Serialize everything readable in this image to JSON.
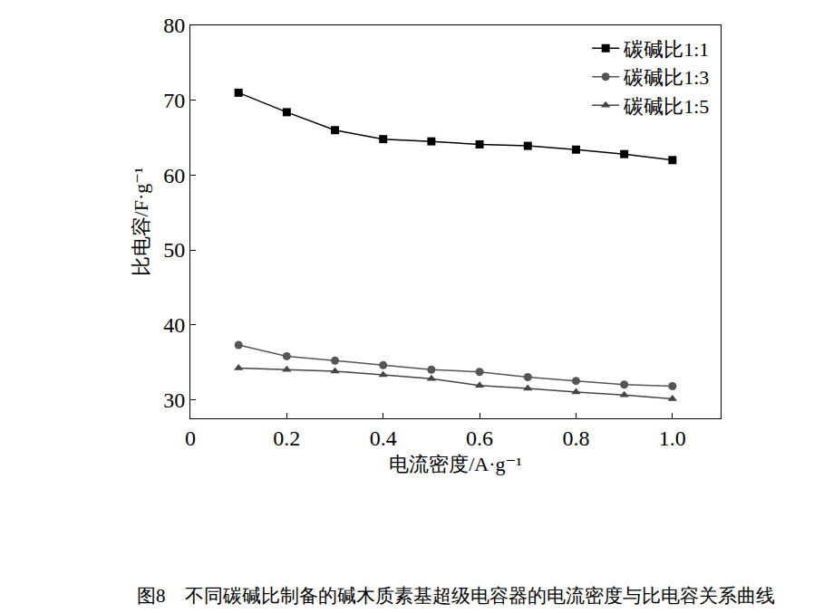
{
  "chart_data": {
    "type": "line",
    "title": "图8　不同碳碱比制备的碱木质素基超级电容器的电流密度与比电容关系曲线",
    "x_label": "电流密度/A·g⁻¹",
    "y_label": "比电容/F·g⁻¹",
    "x": [
      0.1,
      0.2,
      0.3,
      0.4,
      0.5,
      0.6,
      0.7,
      0.8,
      0.9,
      1.0
    ],
    "series": [
      {
        "name": "碳碱比1:1",
        "color": "#000000",
        "marker": "square",
        "values": [
          71.0,
          68.4,
          66.0,
          64.8,
          64.5,
          64.1,
          63.9,
          63.4,
          62.8,
          62.0
        ]
      },
      {
        "name": "碳碱比1:3",
        "color": "#555555",
        "marker": "circle",
        "values": [
          37.3,
          35.8,
          35.2,
          34.6,
          34.0,
          33.7,
          33.0,
          32.5,
          32.0,
          31.8
        ]
      },
      {
        "name": "碳碱比1:5",
        "color": "#444444",
        "marker": "triangle-up",
        "values": [
          34.2,
          34.0,
          33.8,
          33.3,
          32.8,
          31.9,
          31.5,
          31.0,
          30.6,
          30.1
        ]
      }
    ],
    "xlim": [
      0,
      1.1
    ],
    "xticks": [
      0,
      0.2,
      0.4,
      0.6,
      0.8,
      {
        "value": 1,
        "label": "1.0"
      }
    ],
    "ylim": [
      27.5,
      80
    ],
    "yticks": [
      30,
      40,
      50,
      60,
      70,
      80
    ],
    "grid": false,
    "legend": "top-right"
  }
}
